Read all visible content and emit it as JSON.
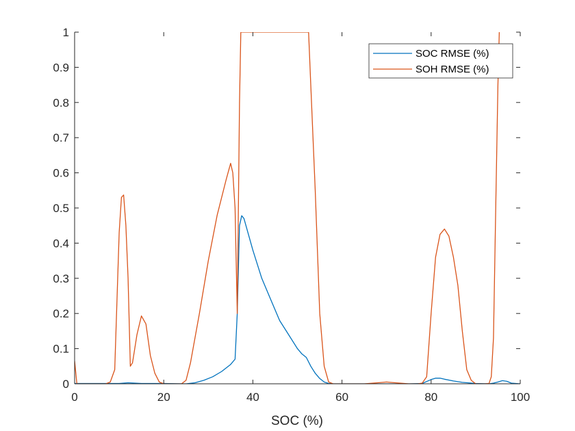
{
  "chart_data": {
    "type": "line",
    "title": "",
    "xlabel": "SOC (%)",
    "ylabel": "",
    "xlim": [
      0,
      100
    ],
    "ylim": [
      0,
      1
    ],
    "xticks": [
      0,
      20,
      40,
      60,
      80,
      100
    ],
    "yticks": [
      0,
      0.1,
      0.2,
      0.3,
      0.4,
      0.5,
      0.6,
      0.7,
      0.8,
      0.9,
      1
    ],
    "grid": false,
    "legend_position": "top-right",
    "series": [
      {
        "name": "SOC RMSE (%)",
        "color": "#0072BD",
        "x": [
          0,
          5,
          10,
          12,
          15,
          20,
          25,
          27,
          29,
          31,
          33,
          35,
          36,
          36.5,
          37,
          37.5,
          38,
          40,
          42,
          44,
          46,
          48,
          50,
          51,
          52,
          53,
          54,
          55,
          56,
          57,
          58,
          60,
          65,
          70,
          75,
          78,
          80,
          81,
          82,
          83,
          85,
          87,
          90,
          93,
          94,
          95,
          96,
          97,
          98,
          100
        ],
        "y": [
          0.001,
          0.001,
          0.001,
          0.003,
          0.001,
          0.001,
          0.0,
          0.003,
          0.01,
          0.02,
          0.035,
          0.055,
          0.07,
          0.2,
          0.45,
          0.478,
          0.47,
          0.38,
          0.3,
          0.24,
          0.18,
          0.14,
          0.1,
          0.085,
          0.075,
          0.05,
          0.03,
          0.015,
          0.005,
          0.001,
          0.0,
          0.0,
          0.0,
          0.0,
          0.0,
          0.001,
          0.012,
          0.016,
          0.016,
          0.013,
          0.008,
          0.004,
          0.001,
          0.0,
          0.002,
          0.005,
          0.009,
          0.007,
          0.002,
          0.0
        ]
      },
      {
        "name": "SOH RMSE (%)",
        "color": "#D95319",
        "x": [
          0,
          0.5,
          1,
          7,
          8,
          9,
          10,
          10.5,
          11,
          11.5,
          12,
          12.5,
          13,
          14,
          15,
          16,
          17,
          18,
          19,
          20,
          24,
          25,
          26,
          28,
          30,
          32,
          34,
          35,
          35.5,
          36,
          36.5,
          37,
          37.3,
          52.5,
          53,
          54,
          55,
          56,
          57,
          58,
          60,
          65,
          68,
          70,
          72,
          75,
          77,
          78,
          79,
          80,
          81,
          82,
          83,
          84,
          85,
          86,
          87,
          88,
          89,
          90,
          92,
          93,
          93.5,
          94,
          94.5,
          95,
          95.3
        ],
        "y": [
          0.065,
          0.0,
          0.0,
          0.0,
          0.005,
          0.04,
          0.43,
          0.53,
          0.537,
          0.45,
          0.3,
          0.05,
          0.06,
          0.14,
          0.193,
          0.17,
          0.08,
          0.03,
          0.005,
          0.0,
          0.0,
          0.01,
          0.06,
          0.2,
          0.35,
          0.48,
          0.58,
          0.627,
          0.6,
          0.5,
          0.2,
          0.8,
          1.0,
          1.0,
          0.85,
          0.55,
          0.2,
          0.05,
          0.005,
          0.0,
          0.0,
          0.0,
          0.003,
          0.005,
          0.003,
          0.0,
          0.0,
          0.002,
          0.02,
          0.2,
          0.36,
          0.425,
          0.44,
          0.42,
          0.36,
          0.28,
          0.15,
          0.04,
          0.01,
          0.0,
          0.0,
          0.001,
          0.02,
          0.13,
          0.5,
          0.85,
          1.0
        ]
      }
    ]
  }
}
